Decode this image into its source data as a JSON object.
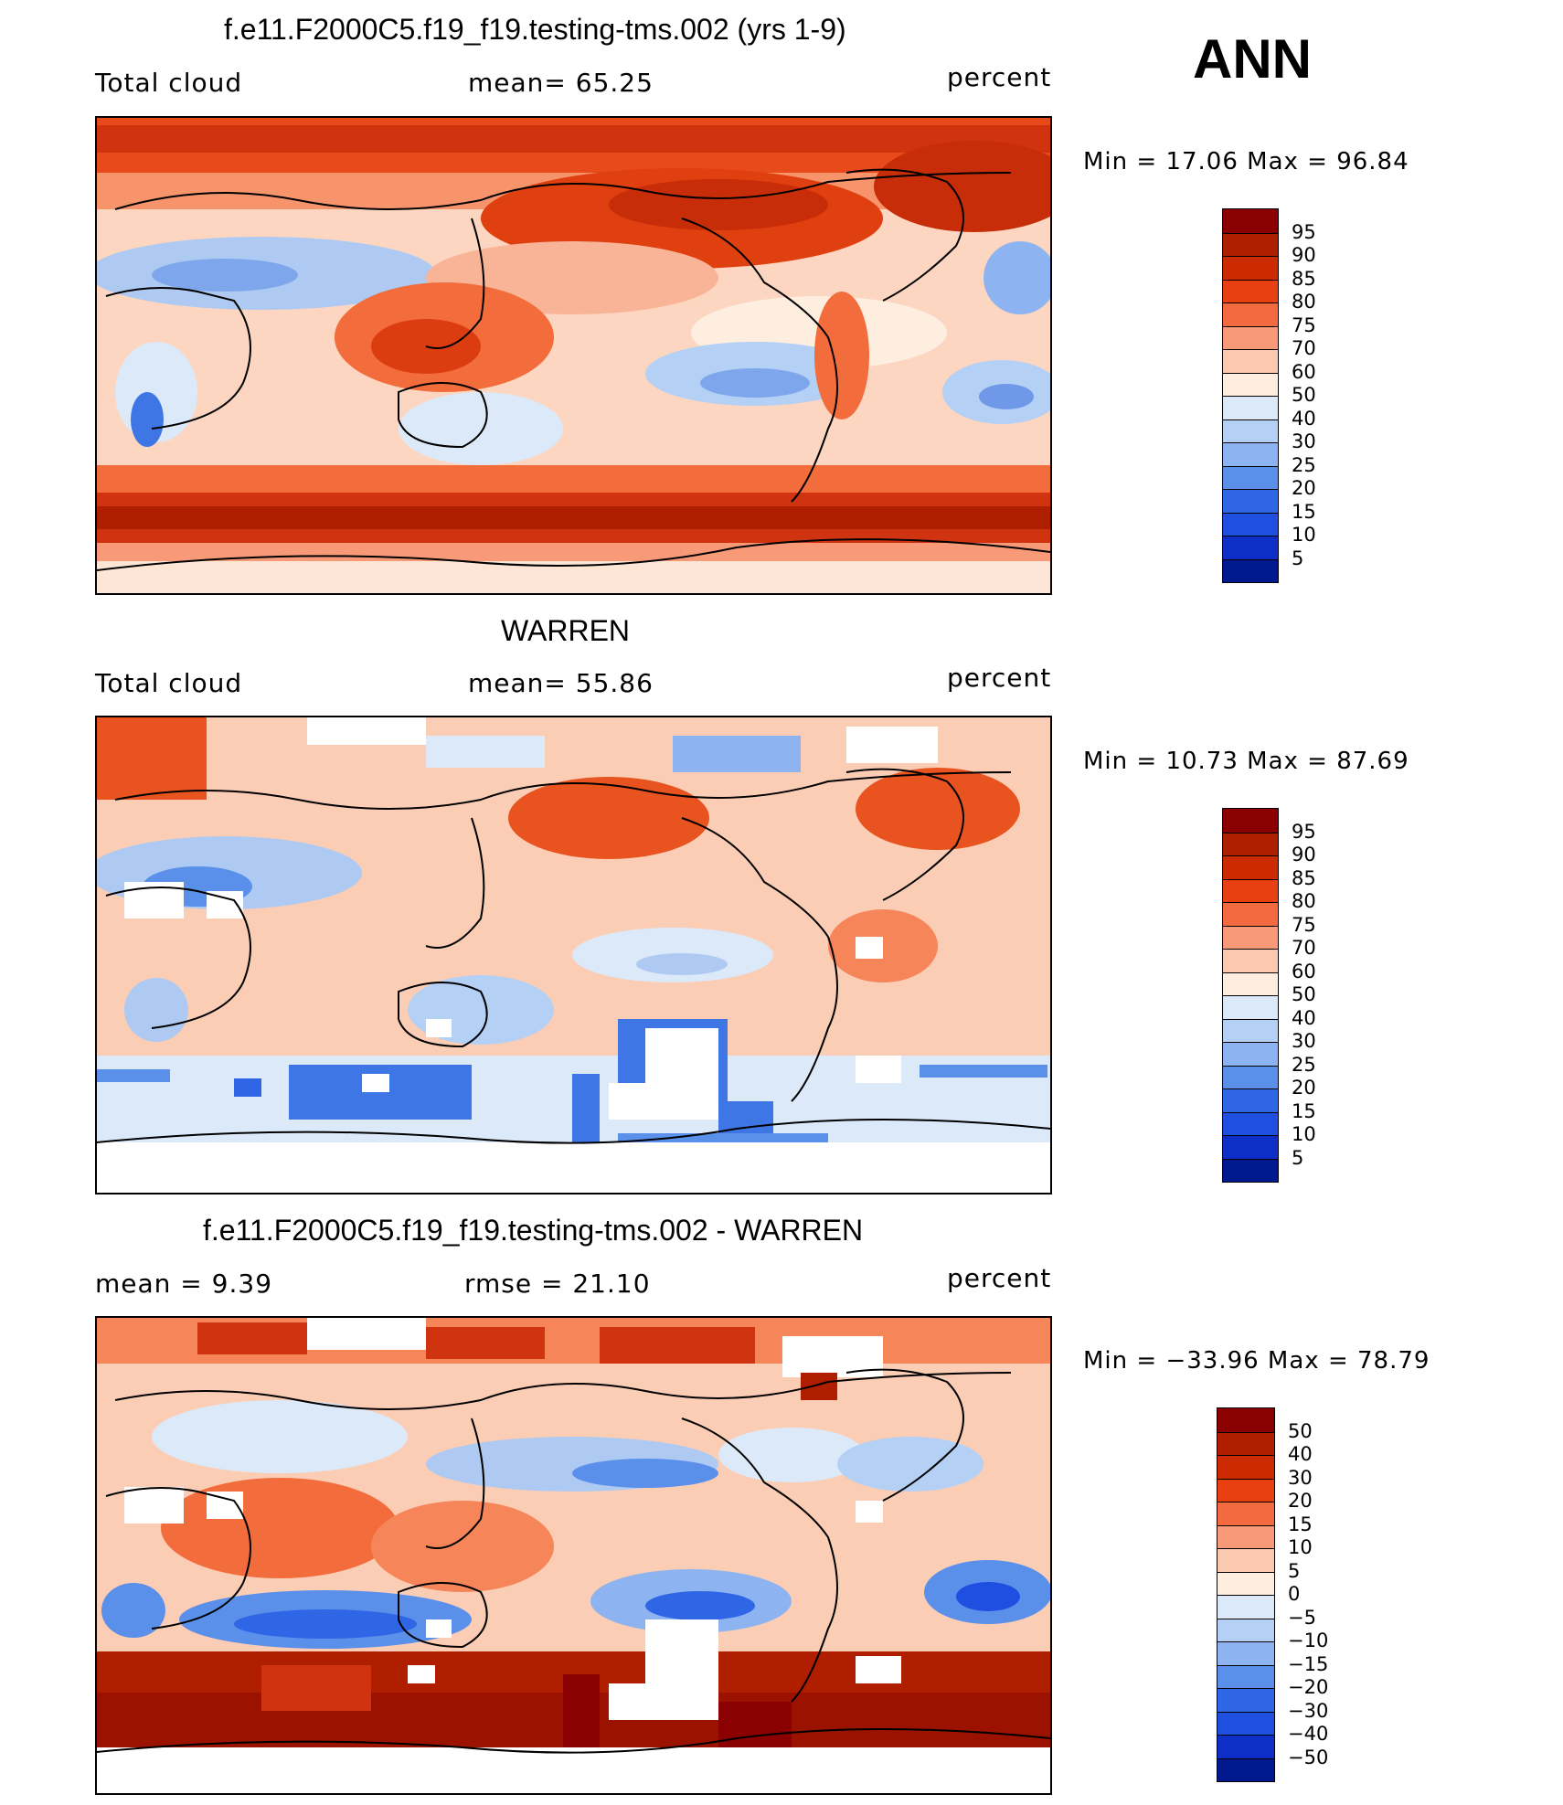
{
  "panel_label": "ANN",
  "panels": [
    {
      "title": "f.e11.F2000C5.f19_f19.testing-tms.002 (yrs 1-9)",
      "left_label": "Total cloud",
      "mid_label": "mean=   65.25",
      "units": "percent",
      "minmax": "Min =   17.06 Max =   96.84",
      "map_name": "Model total cloud annual mean map",
      "colorbar": {
        "colors": [
          "#8b0000",
          "#b01e00",
          "#cc2a00",
          "#e84010",
          "#f46a40",
          "#f89a78",
          "#fbc9b0",
          "#fdeee0",
          "#dce9f9",
          "#b5d0f5",
          "#8db4f0",
          "#5a90ea",
          "#2f66e6",
          "#1f4fe0",
          "#0d2fc8",
          "#00198e"
        ],
        "labels": [
          "95",
          "90",
          "85",
          "80",
          "75",
          "70",
          "60",
          "50",
          "40",
          "30",
          "25",
          "20",
          "15",
          "10",
          "5"
        ]
      }
    },
    {
      "title": "WARREN",
      "left_label": "Total cloud",
      "mid_label": "mean=   55.86",
      "units": "percent",
      "minmax": "Min =   10.73 Max =   87.69",
      "map_name": "WARREN observed total cloud map",
      "colorbar": {
        "colors": [
          "#8b0000",
          "#b01e00",
          "#cc2a00",
          "#e84010",
          "#f46a40",
          "#f89a78",
          "#fbc9b0",
          "#fdeee0",
          "#dce9f9",
          "#b5d0f5",
          "#8db4f0",
          "#5a90ea",
          "#2f66e6",
          "#1f4fe0",
          "#0d2fc8",
          "#00198e"
        ],
        "labels": [
          "95",
          "90",
          "85",
          "80",
          "75",
          "70",
          "60",
          "50",
          "40",
          "30",
          "25",
          "20",
          "15",
          "10",
          "5"
        ]
      }
    },
    {
      "title": "f.e11.F2000C5.f19_f19.testing-tms.002 - WARREN",
      "left_label": "mean =      9.39",
      "mid_label": "rmse =    21.10",
      "units": "percent",
      "minmax": "Min = −33.96 Max =   78.79",
      "map_name": "Difference model minus WARREN map",
      "colorbar": {
        "colors": [
          "#8b0000",
          "#b01e00",
          "#cc2a00",
          "#e84010",
          "#f46a40",
          "#f89a78",
          "#fbc9b0",
          "#fdeee0",
          "#dce9f9",
          "#b5d0f5",
          "#8db4f0",
          "#5a90ea",
          "#2f66e6",
          "#1f4fe0",
          "#0d2fc8",
          "#00198e"
        ],
        "labels": [
          "50",
          "40",
          "30",
          "20",
          "15",
          "10",
          "5",
          "0",
          "−5",
          "−10",
          "−15",
          "−20",
          "−30",
          "−40",
          "−50"
        ]
      }
    }
  ]
}
